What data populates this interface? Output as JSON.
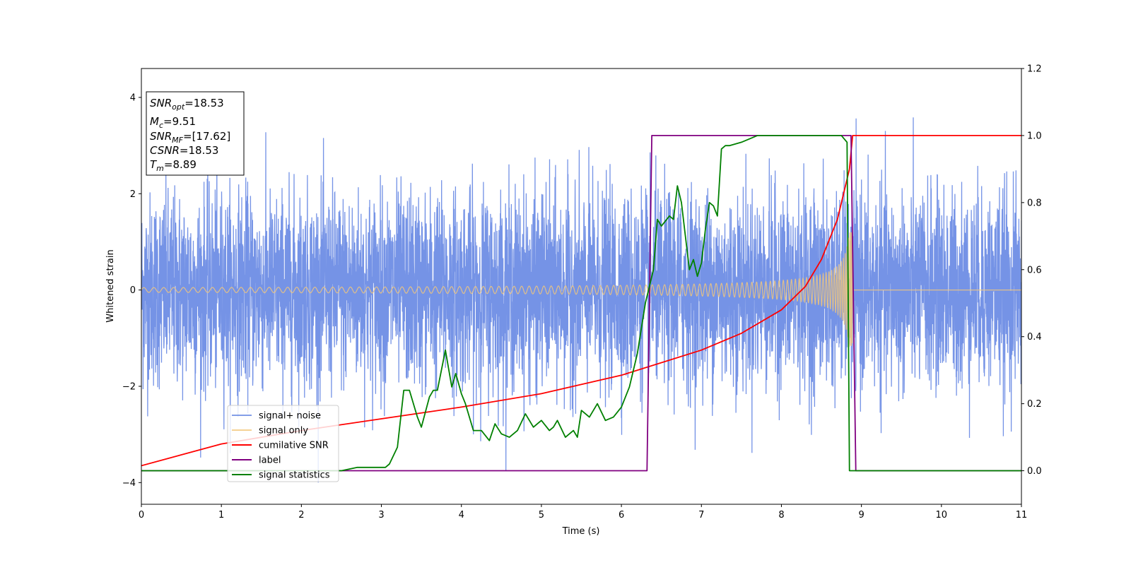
{
  "chart_data": {
    "type": "line",
    "xlabel": "Time (s)",
    "ylabel": "Whitened strain",
    "xlim": [
      0,
      11
    ],
    "ylim": [
      -4.45,
      4.6
    ],
    "y2lim": [
      -0.1,
      1.2
    ],
    "xticks": [
      "0",
      "1",
      "2",
      "3",
      "4",
      "5",
      "6",
      "7",
      "8",
      "9",
      "10",
      "11"
    ],
    "yticks": [
      "−4",
      "−2",
      "0",
      "2",
      "4"
    ],
    "y2ticks": [
      "0.0",
      "0.2",
      "0.4",
      "0.6",
      "0.8",
      "1.0",
      "1.2"
    ],
    "grid": false,
    "legend_position": "lower-left",
    "info_box": {
      "snr_opt": {
        "name": "SNR",
        "sub": "opt",
        "value": "=18.53"
      },
      "mc": {
        "name": "M",
        "sub": "c",
        "value": "=9.51"
      },
      "snr_mf": {
        "name": "SNR",
        "sub": "MF",
        "value": "=[17.62]"
      },
      "csnr": {
        "name": "CSNR",
        "sub": "",
        "value": "=18.53"
      },
      "tm": {
        "name": "T",
        "sub": "m",
        "value": "=8.89"
      }
    },
    "series": [
      {
        "name": "signal+ noise",
        "color": "#7593e6",
        "axis": "left",
        "kind": "noise",
        "amplitude_sigma": 1.0,
        "x_range": [
          0,
          11
        ]
      },
      {
        "name": "signal only",
        "color": "#f2c77a",
        "axis": "left",
        "kind": "chirp",
        "merger_time": 8.89,
        "amplitude_start": 0.05,
        "amplitude_peak": 1.2
      },
      {
        "name": "cumilative SNR",
        "color": "#ff0000",
        "axis": "right",
        "x": [
          0,
          1,
          2,
          3,
          4,
          5,
          6,
          7,
          7.5,
          8,
          8.3,
          8.5,
          8.7,
          8.85,
          8.89,
          9,
          11
        ],
        "y": [
          0.015,
          0.08,
          0.12,
          0.155,
          0.19,
          0.23,
          0.285,
          0.36,
          0.41,
          0.48,
          0.55,
          0.63,
          0.75,
          0.9,
          1.0,
          1.0,
          1.0
        ]
      },
      {
        "name": "label",
        "color": "#800080",
        "axis": "right",
        "x": [
          0,
          6.32,
          6.38,
          8.87,
          8.93,
          11
        ],
        "y": [
          0,
          0,
          1,
          1,
          0,
          0
        ]
      },
      {
        "name": "signal statistics",
        "color": "#008000",
        "axis": "right",
        "x": [
          0,
          1,
          2,
          2.5,
          2.7,
          3.05,
          3.1,
          3.2,
          3.28,
          3.35,
          3.45,
          3.5,
          3.6,
          3.65,
          3.7,
          3.8,
          3.88,
          3.93,
          4,
          4.05,
          4.15,
          4.25,
          4.35,
          4.42,
          4.5,
          4.6,
          4.7,
          4.8,
          4.9,
          5,
          5.1,
          5.15,
          5.2,
          5.3,
          5.4,
          5.45,
          5.5,
          5.6,
          5.7,
          5.8,
          5.9,
          6,
          6.1,
          6.2,
          6.3,
          6.4,
          6.45,
          6.5,
          6.6,
          6.65,
          6.7,
          6.75,
          6.8,
          6.85,
          6.9,
          6.95,
          7,
          7.05,
          7.1,
          7.15,
          7.2,
          7.25,
          7.3,
          7.35,
          7.5,
          7.6,
          7.7,
          7.9,
          8.2,
          8.5,
          8.75,
          8.82,
          8.85,
          8.95,
          9,
          11
        ],
        "y": [
          0,
          0,
          0,
          0,
          0.01,
          0.01,
          0.02,
          0.07,
          0.24,
          0.24,
          0.16,
          0.13,
          0.22,
          0.24,
          0.24,
          0.36,
          0.25,
          0.29,
          0.23,
          0.2,
          0.12,
          0.12,
          0.09,
          0.14,
          0.11,
          0.1,
          0.12,
          0.17,
          0.13,
          0.15,
          0.12,
          0.13,
          0.15,
          0.1,
          0.12,
          0.1,
          0.18,
          0.16,
          0.2,
          0.15,
          0.16,
          0.19,
          0.25,
          0.35,
          0.5,
          0.6,
          0.75,
          0.73,
          0.76,
          0.75,
          0.85,
          0.8,
          0.7,
          0.6,
          0.63,
          0.58,
          0.62,
          0.72,
          0.8,
          0.79,
          0.76,
          0.96,
          0.97,
          0.97,
          0.98,
          0.99,
          1.0,
          1.0,
          1.0,
          1.0,
          1.0,
          0.98,
          0.0,
          0.0,
          0.0,
          0.0
        ]
      }
    ]
  }
}
